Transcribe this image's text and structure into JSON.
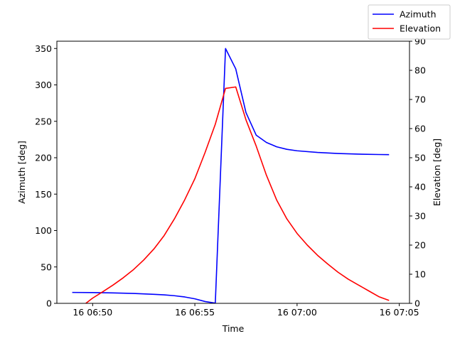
{
  "chart_data": {
    "type": "line",
    "xlabel": "Time",
    "ylabel_left": "Azimuth [deg]",
    "ylabel_right": "Elevation [deg]",
    "x_ticks": [
      "16 06:50",
      "16 06:55",
      "16 07:00",
      "16 07:05"
    ],
    "x_range": [
      "16 06:48:15",
      "16 07:05:30"
    ],
    "ylim_left": [
      0,
      360
    ],
    "ylim_right": [
      0,
      90
    ],
    "yticks_left": [
      0,
      50,
      100,
      150,
      200,
      250,
      300,
      350
    ],
    "yticks_right": [
      0,
      10,
      20,
      30,
      40,
      50,
      60,
      70,
      80,
      90
    ],
    "grid": false,
    "legend_position": "top-right (outside axes)",
    "series": [
      {
        "name": "Azimuth",
        "axis": "left",
        "color": "#0000ff",
        "x": [
          "16 06:49:00",
          "16 06:50:00",
          "16 06:51:00",
          "16 06:52:00",
          "16 06:53:00",
          "16 06:53:30",
          "16 06:54:00",
          "16 06:54:30",
          "16 06:55:00",
          "16 06:55:30",
          "16 06:56:00",
          "16 06:56:30",
          "16 06:57:00",
          "16 06:57:30",
          "16 06:58:00",
          "16 06:58:30",
          "16 06:59:00",
          "16 06:59:30",
          "16 07:00:00",
          "16 07:01:00",
          "16 07:02:00",
          "16 07:03:00",
          "16 07:04:00",
          "16 07:04:30"
        ],
        "y": [
          15,
          14.8,
          14.3,
          13.6,
          12.4,
          11.6,
          10.5,
          8.8,
          6.2,
          2.5,
          0.3,
          350,
          322,
          262,
          231,
          221,
          215,
          211.5,
          209.5,
          207.3,
          205.8,
          204.9,
          204.4,
          204.2
        ]
      },
      {
        "name": "Elevation",
        "axis": "right",
        "color": "#ff0000",
        "x": [
          "16 06:49:40",
          "16 06:50:00",
          "16 06:50:30",
          "16 06:51:00",
          "16 06:51:30",
          "16 06:52:00",
          "16 06:52:30",
          "16 06:53:00",
          "16 06:53:30",
          "16 06:54:00",
          "16 06:54:30",
          "16 06:55:00",
          "16 06:55:30",
          "16 06:56:00",
          "16 06:56:30",
          "16 06:57:00",
          "16 06:57:30",
          "16 06:58:00",
          "16 06:58:30",
          "16 06:59:00",
          "16 06:59:30",
          "16 07:00:00",
          "16 07:00:30",
          "16 07:01:00",
          "16 07:01:30",
          "16 07:02:00",
          "16 07:02:30",
          "16 07:03:00",
          "16 07:03:30",
          "16 07:04:00",
          "16 07:04:30"
        ],
        "y": [
          0,
          1.8,
          4.0,
          6.3,
          8.8,
          11.6,
          14.9,
          18.7,
          23.3,
          29,
          35.5,
          42.8,
          51.8,
          61.5,
          73.8,
          74.3,
          63,
          54,
          44,
          35.5,
          29,
          24,
          20,
          16.5,
          13.5,
          10.7,
          8.3,
          6.3,
          4.3,
          2.3,
          1
        ]
      }
    ]
  }
}
